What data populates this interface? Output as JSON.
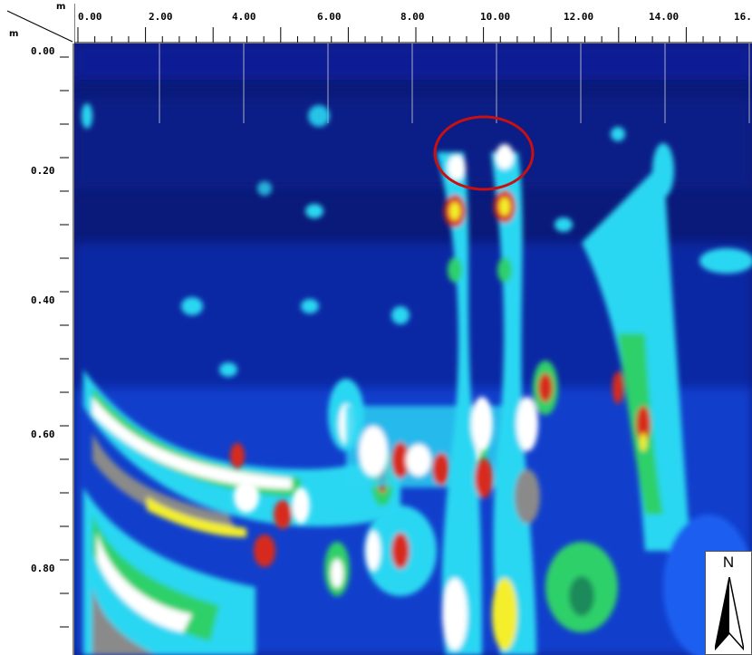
{
  "axes": {
    "x_unit": "m",
    "y_unit": "m",
    "x_ticks": [
      "0.00",
      "2.00",
      "4.00",
      "6.00",
      "8.00",
      "10.00",
      "12.00",
      "14.00",
      "16.0"
    ],
    "y_ticks": [
      "0.00",
      "0.20",
      "0.40",
      "0.60",
      "0.80"
    ]
  },
  "north_arrow": {
    "letter": "N"
  },
  "colors": {
    "background": "#0a1a7a",
    "deep_blue": "#1030c8",
    "blue": "#1e5ef0",
    "cyan": "#2ad7f2",
    "green": "#2fd06a",
    "dark_green": "#1a8a5a",
    "yellow": "#f4ef2a",
    "red": "#d82a1a",
    "white": "#ffffff",
    "gray": "#8a8a8a",
    "highlight_circle": "#c81010"
  }
}
